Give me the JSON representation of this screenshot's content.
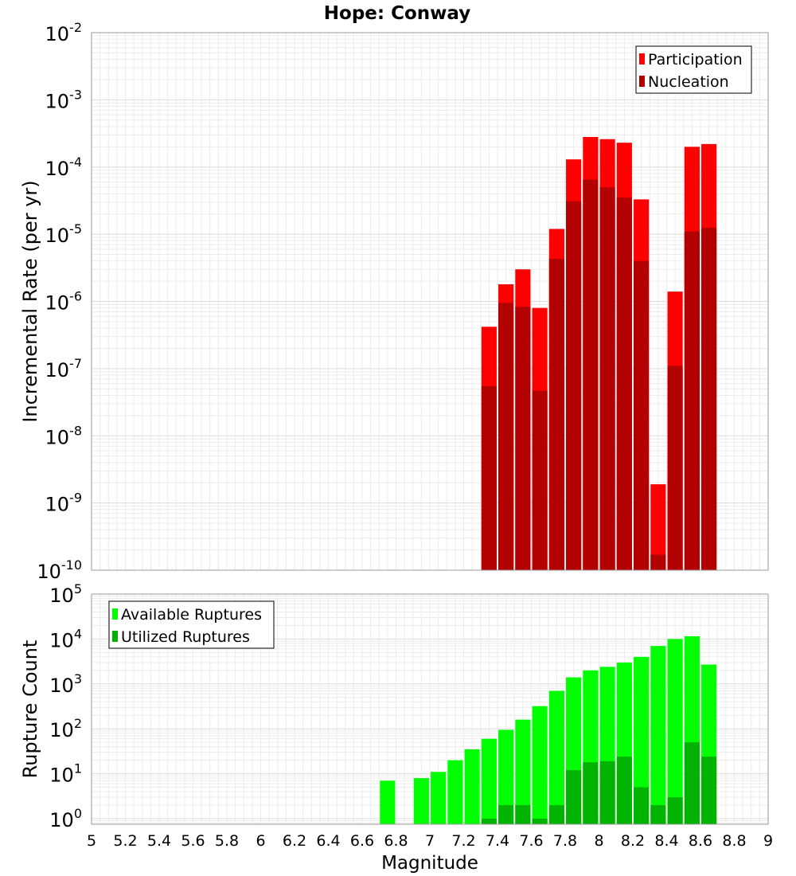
{
  "chart_data": [
    {
      "type": "bar",
      "title": "Hope: Conway",
      "ylabel": "Incremental Rate (per yr)",
      "xlabel": "",
      "y_scale": "log",
      "ylim": [
        1e-10,
        0.01
      ],
      "xlim": [
        5,
        9
      ],
      "y_ticks": [
        {
          "base": "10",
          "exp": "-10"
        },
        {
          "base": "10",
          "exp": "-9"
        },
        {
          "base": "10",
          "exp": "-8"
        },
        {
          "base": "10",
          "exp": "-7"
        },
        {
          "base": "10",
          "exp": "-6"
        },
        {
          "base": "10",
          "exp": "-5"
        },
        {
          "base": "10",
          "exp": "-4"
        },
        {
          "base": "10",
          "exp": "-3"
        },
        {
          "base": "10",
          "exp": "-2"
        }
      ],
      "grid": true,
      "legend_position": "top-right",
      "bar_width": 0.09,
      "series": [
        {
          "name": "Participation",
          "color": "#ff0000",
          "x": [
            7.35,
            7.45,
            7.55,
            7.65,
            7.75,
            7.85,
            7.95,
            8.05,
            8.15,
            8.25,
            8.35,
            8.45,
            8.55,
            8.65
          ],
          "values": [
            4.2e-07,
            1.8e-06,
            3e-06,
            8e-07,
            1.2e-05,
            0.00013,
            0.00028,
            0.00026,
            0.00023,
            3.3e-05,
            1.9e-09,
            1.4e-06,
            0.0002,
            0.00022
          ]
        },
        {
          "name": "Nucleation",
          "color": "#b30000",
          "x": [
            7.35,
            7.45,
            7.55,
            7.65,
            7.75,
            7.85,
            7.95,
            8.05,
            8.15,
            8.25,
            8.35,
            8.45,
            8.55,
            8.65
          ],
          "values": [
            5.5e-08,
            9.5e-07,
            8.3e-07,
            4.7e-08,
            4.3e-06,
            3.1e-05,
            6.5e-05,
            5e-05,
            3.5e-05,
            4e-06,
            1.7e-10,
            1.1e-07,
            1.1e-05,
            1.25e-05
          ]
        }
      ]
    },
    {
      "type": "bar",
      "title": "",
      "ylabel": "Rupture Count",
      "xlabel": "Magnitude",
      "y_scale": "log",
      "ylim": [
        0.75,
        100000
      ],
      "xlim": [
        5,
        9
      ],
      "x_tick_labels": [
        "5",
        "5.2",
        "5.4",
        "5.6",
        "5.8",
        "6",
        "6.2",
        "6.4",
        "6.6",
        "6.8",
        "7",
        "7.2",
        "7.4",
        "7.6",
        "7.8",
        "8",
        "8.2",
        "8.4",
        "8.6",
        "8.8",
        "9"
      ],
      "y_ticks": [
        {
          "base": "10",
          "exp": "0"
        },
        {
          "base": "10",
          "exp": "1"
        },
        {
          "base": "10",
          "exp": "2"
        },
        {
          "base": "10",
          "exp": "3"
        },
        {
          "base": "10",
          "exp": "4"
        },
        {
          "base": "10",
          "exp": "5"
        }
      ],
      "grid": true,
      "legend_position": "top-left",
      "bar_width": 0.09,
      "series": [
        {
          "name": "Available Ruptures",
          "color": "#00ff00",
          "x": [
            6.75,
            6.95,
            7.05,
            7.15,
            7.25,
            7.35,
            7.45,
            7.55,
            7.65,
            7.75,
            7.85,
            7.95,
            8.05,
            8.15,
            8.25,
            8.35,
            8.45,
            8.55,
            8.65
          ],
          "values": [
            7,
            8,
            11,
            20,
            35,
            60,
            95,
            160,
            320,
            700,
            1400,
            2000,
            2400,
            3000,
            4000,
            7000,
            10000,
            11500,
            2700
          ]
        },
        {
          "name": "Utilized Ruptures",
          "color": "#00b300",
          "x": [
            7.35,
            7.45,
            7.55,
            7.65,
            7.75,
            7.85,
            7.95,
            8.05,
            8.15,
            8.25,
            8.35,
            8.45,
            8.55,
            8.65
          ],
          "values": [
            1,
            2,
            2,
            1,
            2,
            12,
            18,
            19,
            24,
            5,
            2,
            3,
            50,
            24
          ]
        }
      ]
    }
  ]
}
